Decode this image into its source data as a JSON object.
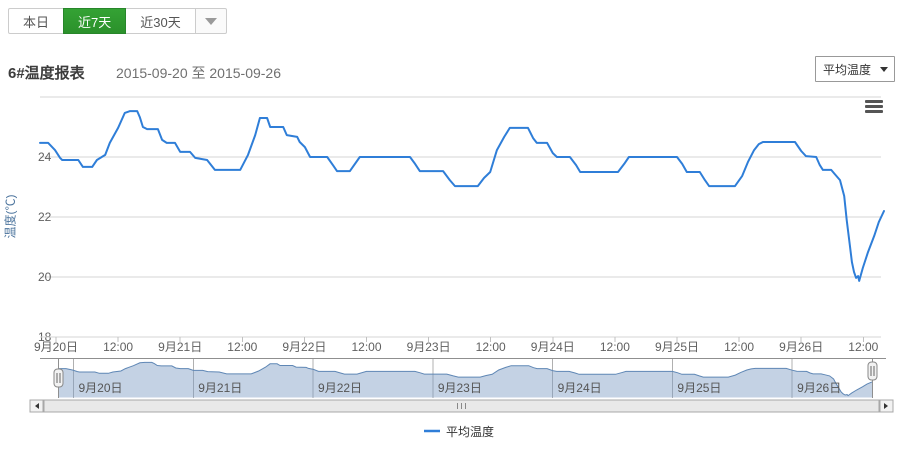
{
  "toolbar": {
    "buttons": [
      {
        "label": "本日",
        "active": false
      },
      {
        "label": "近7天",
        "active": true
      },
      {
        "label": "近30天",
        "active": false
      }
    ],
    "dropdown_icon": "caret-down"
  },
  "header": {
    "title": "6#温度报表",
    "date_range": "2015-09-20 至 2015-09-26"
  },
  "series_select": {
    "value": "平均温度"
  },
  "menu_icon": "hamburger-menu",
  "colors": {
    "accent_green": "#2f9e2f",
    "line_blue": "#2f7ed8",
    "nav_fill": "rgba(125,155,195,0.45)",
    "nav_line": "#5f87b5",
    "grid": "#d4d4d4",
    "axis_label": "#606060",
    "axis_title": "#4d759e"
  },
  "chart_data": {
    "type": "line",
    "title": "6#温度报表",
    "xlabel": "",
    "ylabel": "温度(℃)",
    "ylim": [
      18,
      26
    ],
    "y_ticks": [
      24,
      22,
      20,
      18
    ],
    "grid": true,
    "legend_position": "bottom",
    "x_unit": "hours from 2015-09-20 00:00",
    "x_tick_labels": [
      "9月20日",
      "12:00",
      "9月21日",
      "12:00",
      "9月22日",
      "12:00",
      "9月23日",
      "12:00",
      "9月24日",
      "12:00",
      "9月25日",
      "12:00",
      "9月26日",
      "12:00"
    ],
    "navigator_labels": [
      "9月20日",
      "9月21日",
      "9月22日",
      "9月23日",
      "9月24日",
      "9月25日",
      "9月26日"
    ],
    "series": [
      {
        "name": "平均温度",
        "color": "#2f7ed8",
        "points": [
          [
            -3.1,
            24.47
          ],
          [
            -1.5,
            24.47
          ],
          [
            -0.2,
            24.23
          ],
          [
            0.8,
            23.97
          ],
          [
            1.2,
            23.9
          ],
          [
            4.3,
            23.9
          ],
          [
            5.2,
            23.67
          ],
          [
            7.0,
            23.67
          ],
          [
            7.9,
            23.9
          ],
          [
            9.5,
            24.07
          ],
          [
            10.4,
            24.47
          ],
          [
            12.0,
            24.97
          ],
          [
            13.3,
            25.47
          ],
          [
            14.3,
            25.53
          ],
          [
            15.7,
            25.53
          ],
          [
            16.2,
            25.33
          ],
          [
            16.8,
            25.0
          ],
          [
            17.6,
            24.93
          ],
          [
            19.7,
            24.93
          ],
          [
            20.5,
            24.57
          ],
          [
            21.4,
            24.47
          ],
          [
            23.0,
            24.47
          ],
          [
            24.0,
            24.17
          ],
          [
            25.9,
            24.17
          ],
          [
            26.9,
            23.97
          ],
          [
            29.2,
            23.9
          ],
          [
            30.7,
            23.57
          ],
          [
            35.6,
            23.57
          ],
          [
            37.1,
            24.07
          ],
          [
            38.5,
            24.73
          ],
          [
            39.4,
            25.3
          ],
          [
            40.8,
            25.3
          ],
          [
            41.4,
            25.0
          ],
          [
            43.9,
            25.0
          ],
          [
            44.6,
            24.73
          ],
          [
            46.6,
            24.67
          ],
          [
            47.1,
            24.5
          ],
          [
            48.1,
            24.33
          ],
          [
            49.1,
            24.0
          ],
          [
            52.4,
            24.0
          ],
          [
            53.5,
            23.73
          ],
          [
            54.3,
            23.53
          ],
          [
            56.8,
            23.53
          ],
          [
            58.7,
            24.0
          ],
          [
            68.4,
            24.0
          ],
          [
            69.4,
            23.77
          ],
          [
            70.3,
            23.53
          ],
          [
            74.8,
            23.53
          ],
          [
            76.1,
            23.23
          ],
          [
            77.1,
            23.03
          ],
          [
            81.5,
            23.03
          ],
          [
            82.7,
            23.3
          ],
          [
            83.9,
            23.5
          ],
          [
            85.2,
            24.23
          ],
          [
            86.6,
            24.67
          ],
          [
            87.7,
            24.97
          ],
          [
            91.2,
            24.97
          ],
          [
            92.2,
            24.63
          ],
          [
            92.9,
            24.47
          ],
          [
            94.9,
            24.47
          ],
          [
            96.0,
            24.13
          ],
          [
            96.8,
            24.0
          ],
          [
            99.3,
            24.0
          ],
          [
            100.5,
            23.73
          ],
          [
            101.3,
            23.5
          ],
          [
            108.6,
            23.5
          ],
          [
            109.8,
            23.77
          ],
          [
            110.7,
            24.0
          ],
          [
            120.0,
            24.0
          ],
          [
            121.0,
            23.77
          ],
          [
            121.9,
            23.5
          ],
          [
            124.4,
            23.5
          ],
          [
            125.4,
            23.23
          ],
          [
            126.2,
            23.03
          ],
          [
            131.2,
            23.03
          ],
          [
            132.6,
            23.37
          ],
          [
            133.7,
            23.83
          ],
          [
            134.9,
            24.23
          ],
          [
            135.8,
            24.43
          ],
          [
            136.6,
            24.5
          ],
          [
            142.8,
            24.5
          ],
          [
            144.0,
            24.2
          ],
          [
            144.9,
            24.03
          ],
          [
            146.9,
            24.0
          ],
          [
            147.6,
            23.73
          ],
          [
            148.2,
            23.57
          ],
          [
            149.8,
            23.57
          ],
          [
            150.5,
            23.43
          ],
          [
            151.5,
            23.23
          ],
          [
            152.3,
            22.7
          ],
          [
            152.8,
            21.9
          ],
          [
            153.4,
            21.07
          ],
          [
            153.8,
            20.5
          ],
          [
            154.2,
            20.17
          ],
          [
            154.6,
            19.97
          ],
          [
            155.0,
            20.03
          ],
          [
            155.2,
            19.87
          ],
          [
            155.9,
            20.3
          ],
          [
            156.9,
            20.83
          ],
          [
            158.1,
            21.37
          ],
          [
            159.0,
            21.83
          ],
          [
            160.0,
            22.2
          ]
        ]
      }
    ]
  }
}
